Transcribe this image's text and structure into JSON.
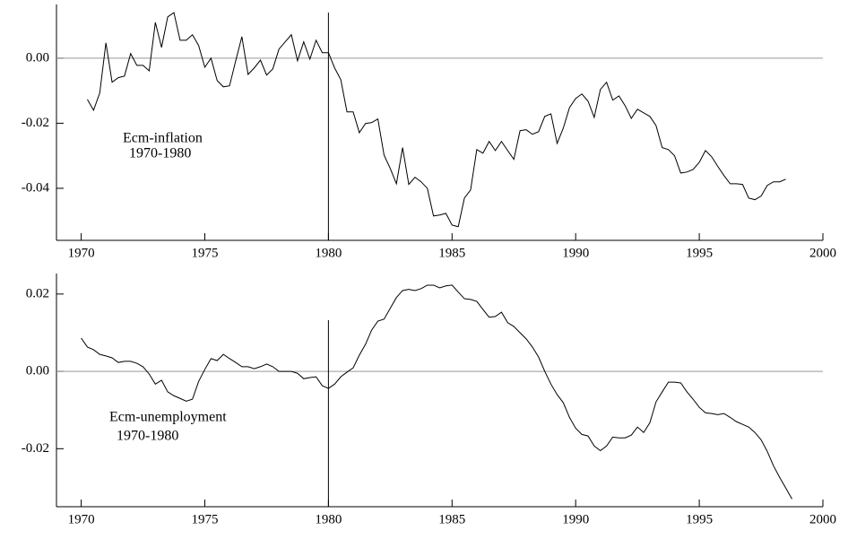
{
  "chart_data": [
    {
      "type": "line",
      "color": "#000000",
      "xlim": [
        1969,
        2000
      ],
      "xticks": [
        1970,
        1975,
        1980,
        1985,
        1990,
        1995,
        2000
      ],
      "ylim": [
        -0.056,
        0.0165
      ],
      "yticks": [
        {
          "value": -0.04,
          "label": "-0.04"
        },
        {
          "value": -0.02,
          "label": "-0.02"
        },
        {
          "value": 0,
          "label": "0.00"
        }
      ],
      "hline": 0,
      "vline": 1980,
      "annotations": [
        "Ecm-inflation",
        "1970-1980"
      ],
      "x": [
        1970.25,
        1970.5,
        1970.75,
        1971,
        1971.25,
        1971.5,
        1971.75,
        1972,
        1972.25,
        1972.5,
        1972.75,
        1973,
        1973.25,
        1973.5,
        1973.75,
        1974,
        1974.25,
        1974.5,
        1974.75,
        1975,
        1975.25,
        1975.5,
        1975.75,
        1976,
        1976.25,
        1976.5,
        1976.75,
        1977,
        1977.25,
        1977.5,
        1977.75,
        1978,
        1978.25,
        1978.5,
        1978.75,
        1979,
        1979.25,
        1979.5,
        1979.75,
        1980,
        1980.25,
        1980.5,
        1980.75,
        1981,
        1981.25,
        1981.5,
        1981.75,
        1982,
        1982.25,
        1982.5,
        1982.75,
        1983,
        1983.25,
        1983.5,
        1983.75,
        1984,
        1984.25,
        1984.5,
        1984.75,
        1985,
        1985.25,
        1985.5,
        1985.75,
        1986,
        1986.25,
        1986.5,
        1986.75,
        1987,
        1987.25,
        1987.5,
        1987.75,
        1988,
        1988.25,
        1988.5,
        1988.75,
        1989,
        1989.25,
        1989.5,
        1989.75,
        1990,
        1990.25,
        1990.5,
        1990.75,
        1991,
        1991.25,
        1991.5,
        1991.75,
        1992,
        1992.25,
        1992.5,
        1992.75,
        1993,
        1993.25,
        1993.5,
        1993.75,
        1994,
        1994.25,
        1994.5,
        1994.75,
        1995,
        1995.25,
        1995.5,
        1995.75,
        1996,
        1996.25,
        1996.5,
        1996.75,
        1997,
        1997.25,
        1997.5,
        1997.75,
        1998,
        1998.25,
        1998.5
      ],
      "values": [
        -0.0127,
        -0.016,
        -0.0107,
        0.0047,
        -0.0074,
        -0.006,
        -0.0055,
        0.0014,
        -0.0022,
        -0.0022,
        -0.0039,
        0.011,
        0.0033,
        0.0127,
        0.014,
        0.0055,
        0.0055,
        0.0072,
        0.0039,
        -0.0028,
        0,
        -0.0069,
        -0.0088,
        -0.0085,
        -0.0008,
        0.0066,
        -0.005,
        -0.003,
        -0.0006,
        -0.0052,
        -0.0033,
        0.0028,
        0.005,
        0.0072,
        -0.0008,
        0.005,
        -0.0003,
        0.0055,
        0.0017,
        0.0017,
        -0.003,
        -0.0066,
        -0.0165,
        -0.0165,
        -0.0229,
        -0.0201,
        -0.0198,
        -0.0187,
        -0.0298,
        -0.0339,
        -0.0386,
        -0.0275,
        -0.0388,
        -0.0366,
        -0.038,
        -0.04,
        -0.0485,
        -0.0482,
        -0.0477,
        -0.0513,
        -0.0518,
        -0.043,
        -0.0405,
        -0.0281,
        -0.0292,
        -0.0256,
        -0.0284,
        -0.0256,
        -0.0284,
        -0.0311,
        -0.0223,
        -0.022,
        -0.0234,
        -0.0226,
        -0.0179,
        -0.0171,
        -0.0262,
        -0.0215,
        -0.0152,
        -0.0124,
        -0.011,
        -0.0132,
        -0.0182,
        -0.0096,
        -0.0074,
        -0.0129,
        -0.0116,
        -0.0146,
        -0.0185,
        -0.0157,
        -0.0168,
        -0.0179,
        -0.0207,
        -0.0275,
        -0.0281,
        -0.03,
        -0.0353,
        -0.035,
        -0.0342,
        -0.032,
        -0.0284,
        -0.0303,
        -0.0333,
        -0.0361,
        -0.0386,
        -0.0386,
        -0.0388,
        -0.043,
        -0.0435,
        -0.0424,
        -0.0391,
        -0.038,
        -0.038,
        -0.0372
      ]
    },
    {
      "type": "line",
      "color": "#000000",
      "xlim": [
        1969,
        2000
      ],
      "xticks": [
        1970,
        1975,
        1980,
        1985,
        1990,
        1995,
        2000
      ],
      "ylim": [
        -0.035,
        0.0253
      ],
      "yticks": [
        {
          "value": -0.02,
          "label": "-0.02"
        },
        {
          "value": 0,
          "label": "0.00"
        },
        {
          "value": 0.02,
          "label": "0.02"
        }
      ],
      "hline": 0,
      "vline": 1980,
      "annotations": [
        "Ecm-unemployment",
        "1970-1980"
      ],
      "x": [
        1970,
        1970.25,
        1970.5,
        1970.75,
        1971,
        1971.25,
        1971.5,
        1971.75,
        1972,
        1972.25,
        1972.5,
        1972.75,
        1973,
        1973.25,
        1973.5,
        1973.75,
        1974,
        1974.25,
        1974.5,
        1974.75,
        1975,
        1975.25,
        1975.5,
        1975.75,
        1976,
        1976.25,
        1976.5,
        1976.75,
        1977,
        1977.25,
        1977.5,
        1977.75,
        1978,
        1978.25,
        1978.5,
        1978.75,
        1979,
        1979.25,
        1979.5,
        1979.75,
        1980,
        1980.25,
        1980.5,
        1980.75,
        1981,
        1981.25,
        1981.5,
        1981.75,
        1982,
        1982.25,
        1982.5,
        1982.75,
        1983,
        1983.25,
        1983.5,
        1983.75,
        1984,
        1984.25,
        1984.5,
        1984.75,
        1985,
        1985.25,
        1985.5,
        1985.75,
        1986,
        1986.25,
        1986.5,
        1986.75,
        1987,
        1987.25,
        1987.5,
        1987.75,
        1988,
        1988.25,
        1988.5,
        1988.75,
        1989,
        1989.25,
        1989.5,
        1989.75,
        1990,
        1990.25,
        1990.5,
        1990.75,
        1991,
        1991.25,
        1991.5,
        1991.75,
        1992,
        1992.25,
        1992.5,
        1992.75,
        1993,
        1993.25,
        1993.5,
        1993.75,
        1994,
        1994.25,
        1994.5,
        1994.75,
        1995,
        1995.25,
        1995.5,
        1995.75,
        1996,
        1996.25,
        1996.5,
        1996.75,
        1997,
        1997.25,
        1997.5,
        1997.75,
        1998,
        1998.25,
        1998.5,
        1998.75
      ],
      "values": [
        0.0086,
        0.0063,
        0.0056,
        0.0044,
        0.004,
        0.0035,
        0.0023,
        0.0026,
        0.0026,
        0.0021,
        0.0012,
        -0.0007,
        -0.0033,
        -0.0023,
        -0.0053,
        -0.0063,
        -0.007,
        -0.0077,
        -0.0072,
        -0.0026,
        0.0005,
        0.0033,
        0.0028,
        0.0044,
        0.0033,
        0.0023,
        0.0012,
        0.0012,
        0.0007,
        0.0012,
        0.0019,
        0.0012,
        0,
        0,
        0,
        -0.0005,
        -0.0019,
        -0.0016,
        -0.0014,
        -0.0037,
        -0.0044,
        -0.0033,
        -0.0014,
        -0.0002,
        0.0009,
        0.0042,
        0.007,
        0.0107,
        0.013,
        0.0135,
        0.0163,
        0.0191,
        0.0209,
        0.0212,
        0.0209,
        0.0214,
        0.0223,
        0.0223,
        0.0216,
        0.0221,
        0.0223,
        0.0205,
        0.0188,
        0.0186,
        0.0181,
        0.016,
        0.014,
        0.0142,
        0.0153,
        0.0126,
        0.0116,
        0.01,
        0.0084,
        0.0063,
        0.0037,
        0,
        -0.0033,
        -0.006,
        -0.0081,
        -0.0119,
        -0.0147,
        -0.0163,
        -0.0167,
        -0.0193,
        -0.0205,
        -0.0193,
        -0.017,
        -0.0172,
        -0.0172,
        -0.0165,
        -0.0144,
        -0.0158,
        -0.0133,
        -0.0079,
        -0.0053,
        -0.0028,
        -0.0028,
        -0.003,
        -0.0053,
        -0.0072,
        -0.0093,
        -0.0107,
        -0.0109,
        -0.0112,
        -0.0109,
        -0.0119,
        -0.013,
        -0.0137,
        -0.0144,
        -0.0158,
        -0.0177,
        -0.0207,
        -0.0244,
        -0.0274,
        -0.0302,
        -0.033
      ]
    }
  ]
}
